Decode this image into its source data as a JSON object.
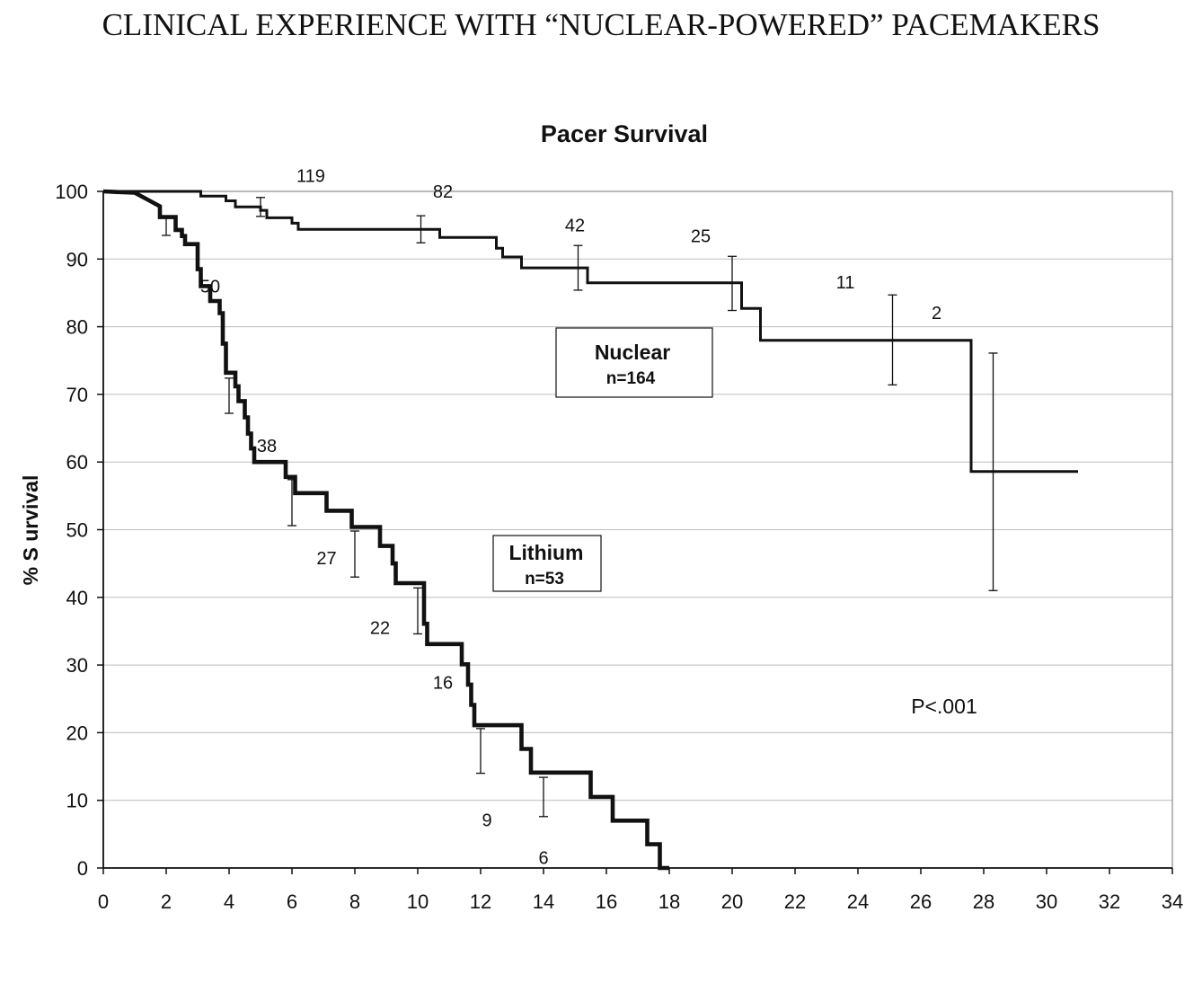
{
  "page": {
    "title": "CLINICAL EXPERIENCE WITH “NUCLEAR-POWERED” PACEMAKERS"
  },
  "chart_data": {
    "type": "line",
    "title": "Pacer Survival",
    "xlabel": "",
    "ylabel": "% S urvival",
    "xlim": [
      0,
      34
    ],
    "ylim": [
      0,
      100
    ],
    "x_ticks": [
      0,
      2,
      4,
      6,
      8,
      10,
      12,
      14,
      16,
      18,
      20,
      22,
      24,
      26,
      28,
      30,
      32,
      34
    ],
    "y_ticks": [
      0,
      10,
      20,
      30,
      40,
      50,
      60,
      70,
      80,
      90,
      100
    ],
    "grid": "horizontal",
    "series": [
      {
        "name": "Nuclear",
        "n_label": "n=164",
        "line_weight": "thin",
        "step_points": [
          [
            0,
            100
          ],
          [
            3.1,
            100
          ],
          [
            3.1,
            99.3
          ],
          [
            3.9,
            99.3
          ],
          [
            3.9,
            98.6
          ],
          [
            4.2,
            98.6
          ],
          [
            4.2,
            97.7
          ],
          [
            5.0,
            97.7
          ],
          [
            5.0,
            97.2
          ],
          [
            5.2,
            97.2
          ],
          [
            5.2,
            96.1
          ],
          [
            6.0,
            96.1
          ],
          [
            6.0,
            95.3
          ],
          [
            6.2,
            95.3
          ],
          [
            6.2,
            94.4
          ],
          [
            10.7,
            94.4
          ],
          [
            10.7,
            93.2
          ],
          [
            12.5,
            93.2
          ],
          [
            12.5,
            91.6
          ],
          [
            12.7,
            91.6
          ],
          [
            12.7,
            90.3
          ],
          [
            13.3,
            90.3
          ],
          [
            13.3,
            88.7
          ],
          [
            15.4,
            88.7
          ],
          [
            15.4,
            86.5
          ],
          [
            20.3,
            86.5
          ],
          [
            20.3,
            82.7
          ],
          [
            20.9,
            82.7
          ],
          [
            20.9,
            78.0
          ],
          [
            27.6,
            78.0
          ],
          [
            27.6,
            58.6
          ],
          [
            31.0,
            58.6
          ]
        ],
        "error_bars": [
          {
            "x": 5.0,
            "low": 96.3,
            "high": 99.1
          },
          {
            "x": 10.1,
            "low": 92.4,
            "high": 96.4
          },
          {
            "x": 15.1,
            "low": 85.4,
            "high": 92.0
          },
          {
            "x": 20.0,
            "low": 82.4,
            "high": 90.4
          },
          {
            "x": 25.1,
            "low": 71.4,
            "high": 84.7
          },
          {
            "x": 28.3,
            "low": 41.0,
            "high": 76.1
          }
        ],
        "at_risk": [
          {
            "x": 6.6,
            "y": 102.3,
            "label": "119"
          },
          {
            "x": 10.8,
            "y": 100.0,
            "label": "82"
          },
          {
            "x": 15.0,
            "y": 95.0,
            "label": "42"
          },
          {
            "x": 19.0,
            "y": 93.4,
            "label": "25"
          },
          {
            "x": 23.6,
            "y": 86.6,
            "label": "11"
          },
          {
            "x": 26.5,
            "y": 82.1,
            "label": "2"
          }
        ]
      },
      {
        "name": "Lithium",
        "n_label": "n=53",
        "line_weight": "thick",
        "step_points": [
          [
            0,
            100
          ],
          [
            1.0,
            99.8
          ],
          [
            1.4,
            98.8
          ],
          [
            1.8,
            97.8
          ],
          [
            1.8,
            96.2
          ],
          [
            2.3,
            96.2
          ],
          [
            2.3,
            94.3
          ],
          [
            2.5,
            94.3
          ],
          [
            2.5,
            93.4
          ],
          [
            2.6,
            93.4
          ],
          [
            2.6,
            92.2
          ],
          [
            3.0,
            92.2
          ],
          [
            3.0,
            88.5
          ],
          [
            3.1,
            88.5
          ],
          [
            3.1,
            86.0
          ],
          [
            3.4,
            86.0
          ],
          [
            3.4,
            83.8
          ],
          [
            3.7,
            83.8
          ],
          [
            3.7,
            82.0
          ],
          [
            3.8,
            82.0
          ],
          [
            3.8,
            77.5
          ],
          [
            3.9,
            77.5
          ],
          [
            3.9,
            73.2
          ],
          [
            4.2,
            73.2
          ],
          [
            4.2,
            71.2
          ],
          [
            4.3,
            71.2
          ],
          [
            4.3,
            69.0
          ],
          [
            4.5,
            69.0
          ],
          [
            4.5,
            66.6
          ],
          [
            4.6,
            66.6
          ],
          [
            4.6,
            64.2
          ],
          [
            4.7,
            64.2
          ],
          [
            4.7,
            62.0
          ],
          [
            4.8,
            62.0
          ],
          [
            4.8,
            60.0
          ],
          [
            5.8,
            60.0
          ],
          [
            5.8,
            57.8
          ],
          [
            6.1,
            57.8
          ],
          [
            6.1,
            55.4
          ],
          [
            7.1,
            55.4
          ],
          [
            7.1,
            52.8
          ],
          [
            7.9,
            52.8
          ],
          [
            7.9,
            50.4
          ],
          [
            8.8,
            50.4
          ],
          [
            8.8,
            47.6
          ],
          [
            9.2,
            47.6
          ],
          [
            9.2,
            45.0
          ],
          [
            9.3,
            45.0
          ],
          [
            9.3,
            42.1
          ],
          [
            10.2,
            42.1
          ],
          [
            10.2,
            36.1
          ],
          [
            10.3,
            36.1
          ],
          [
            10.3,
            33.1
          ],
          [
            11.4,
            33.1
          ],
          [
            11.4,
            30.1
          ],
          [
            11.6,
            30.1
          ],
          [
            11.6,
            27.1
          ],
          [
            11.7,
            27.1
          ],
          [
            11.7,
            24.1
          ],
          [
            11.8,
            24.1
          ],
          [
            11.8,
            21.1
          ],
          [
            13.3,
            21.1
          ],
          [
            13.3,
            17.6
          ],
          [
            13.6,
            17.6
          ],
          [
            13.6,
            14.1
          ],
          [
            15.5,
            14.1
          ],
          [
            15.5,
            10.5
          ],
          [
            16.2,
            10.5
          ],
          [
            16.2,
            7.0
          ],
          [
            17.3,
            7.0
          ],
          [
            17.3,
            3.5
          ],
          [
            17.7,
            3.5
          ],
          [
            17.7,
            0
          ],
          [
            18.0,
            0
          ]
        ],
        "error_bars": [
          {
            "x": 2.0,
            "low": 93.5,
            "high": 96.3
          },
          {
            "x": 4.0,
            "low": 67.2,
            "high": 72.4
          },
          {
            "x": 6.0,
            "low": 50.6,
            "high": 57.4
          },
          {
            "x": 8.0,
            "low": 43.0,
            "high": 49.8
          },
          {
            "x": 10.0,
            "low": 34.6,
            "high": 41.4
          },
          {
            "x": 12.0,
            "low": 14.0,
            "high": 20.6
          },
          {
            "x": 14.0,
            "low": 7.6,
            "high": 13.4
          }
        ],
        "at_risk": [
          {
            "x": 3.4,
            "y": 86.0,
            "label": "50"
          },
          {
            "x": 5.2,
            "y": 62.4,
            "label": "38"
          },
          {
            "x": 7.1,
            "y": 45.8,
            "label": "27"
          },
          {
            "x": 8.8,
            "y": 35.5,
            "label": "22"
          },
          {
            "x": 10.8,
            "y": 27.4,
            "label": "16"
          },
          {
            "x": 12.2,
            "y": 7.1,
            "label": "9"
          },
          {
            "x": 14.0,
            "y": 1.5,
            "label": "6"
          }
        ]
      }
    ],
    "annotation": "P<.001"
  }
}
